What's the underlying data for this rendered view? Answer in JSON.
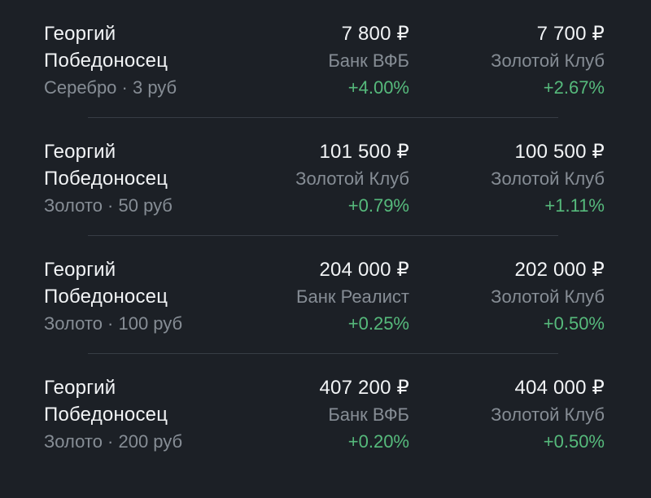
{
  "page": {
    "background_color": "#1c2026"
  },
  "colors": {
    "primary_text": "#f2f4f6",
    "muted_text": "#868d95",
    "positive_change": "#56ba7c",
    "divider": "#373d45"
  },
  "listings": [
    {
      "name_line1": "Георгий",
      "name_line2": "Победоносец",
      "details": "Серебро · 3 руб",
      "offers": [
        {
          "price": "7 800 ₽",
          "bank": "Банк ВФБ",
          "change": "+4.00%"
        },
        {
          "price": "7 700 ₽",
          "bank": "Золотой Клуб",
          "change": "+2.67%"
        }
      ]
    },
    {
      "name_line1": "Георгий",
      "name_line2": "Победоносец",
      "details": "Золото · 50 руб",
      "offers": [
        {
          "price": "101 500 ₽",
          "bank": "Золотой Клуб",
          "change": "+0.79%"
        },
        {
          "price": "100 500 ₽",
          "bank": "Золотой Клуб",
          "change": "+1.11%"
        }
      ]
    },
    {
      "name_line1": "Георгий",
      "name_line2": "Победоносец",
      "details": "Золото · 100 руб",
      "offers": [
        {
          "price": "204 000 ₽",
          "bank": "Банк Реалист",
          "change": "+0.25%"
        },
        {
          "price": "202 000 ₽",
          "bank": "Золотой Клуб",
          "change": "+0.50%"
        }
      ]
    },
    {
      "name_line1": "Георгий",
      "name_line2": "Победоносец",
      "details": "Золото · 200 руб",
      "offers": [
        {
          "price": "407 200 ₽",
          "bank": "Банк ВФБ",
          "change": "+0.20%"
        },
        {
          "price": "404 000 ₽",
          "bank": "Золотой Клуб",
          "change": "+0.50%"
        }
      ]
    }
  ]
}
